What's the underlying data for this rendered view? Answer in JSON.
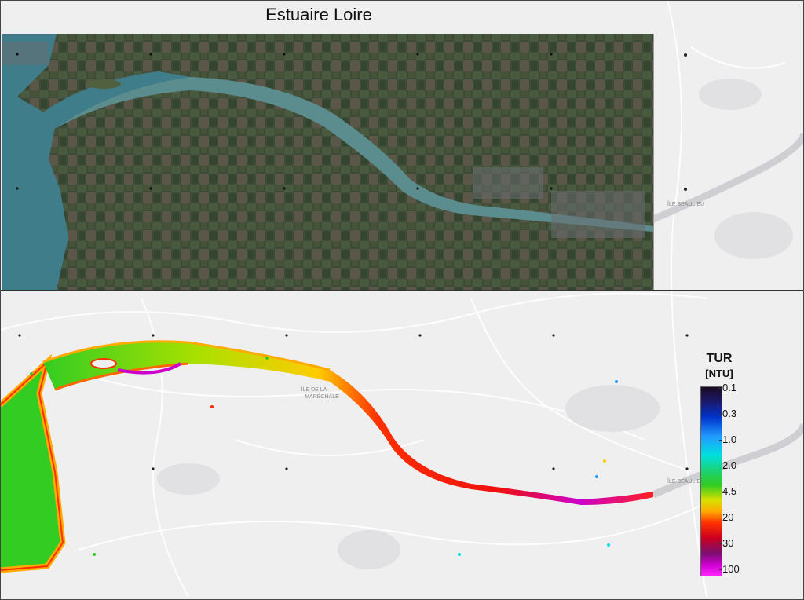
{
  "title": "Estuaire Loire",
  "top_panel": {
    "kind": "true-color satellite image"
  },
  "bottom_panel": {
    "kind": "turbidity map"
  },
  "place_labels": {
    "ile_de_la_maréchale": "ÎLE DE LA\nMARÉCHALE",
    "ile_beaulieu": "ÎLE BEAULIEU"
  },
  "legend": {
    "title": "TUR",
    "unit": "[NTU]",
    "ticks": [
      "0.1",
      "0.3",
      "1.0",
      "2.0",
      "4.5",
      "20",
      "30",
      "100"
    ]
  },
  "colors": {
    "water_top": "#3f7d8a",
    "land_top": "#3b4a3a",
    "basemap": "#efeff0",
    "plume_green": "#33cc22",
    "plume_yellow": "#d8e000",
    "plume_red": "#ff3000",
    "plume_magenta": "#cc00cc"
  }
}
